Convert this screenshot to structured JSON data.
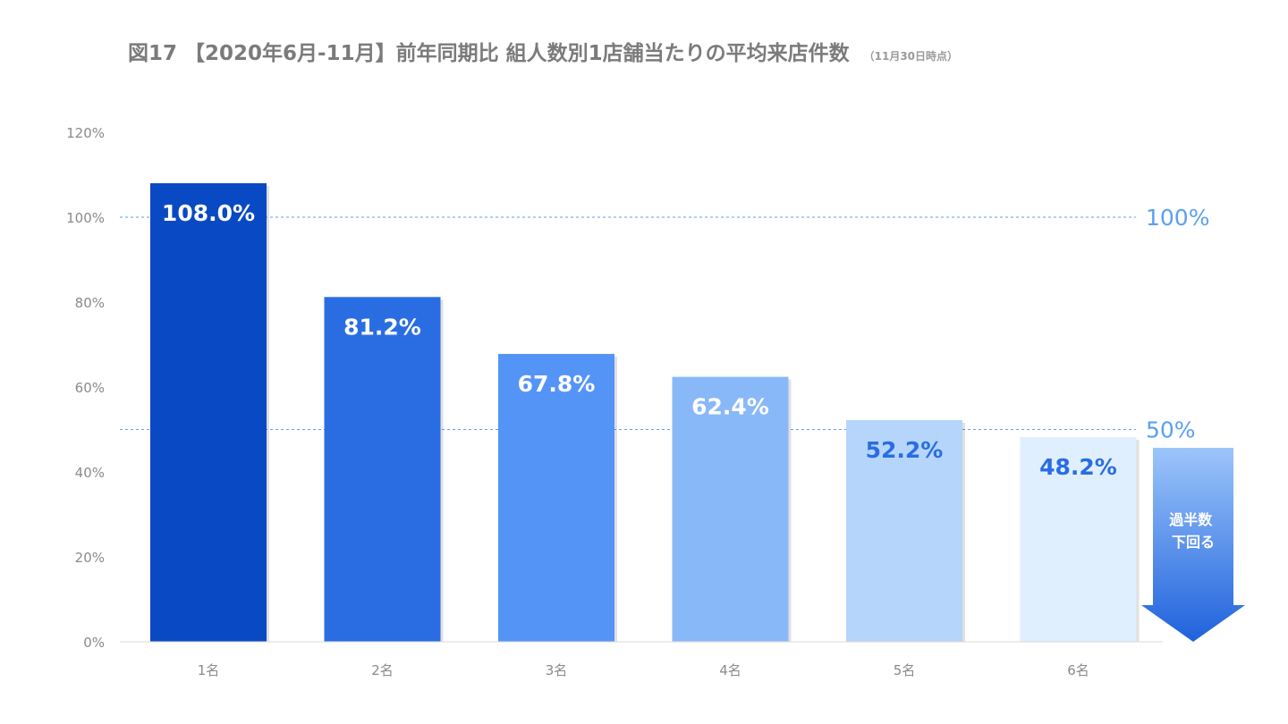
{
  "chart_data": {
    "type": "bar",
    "title": "図17 【2020年6月-11月】前年同期比 組人数別1店舗当たりの平均来店件数",
    "subtitle": "（11月30日時点）",
    "xlabel": "",
    "ylabel": "",
    "categories": [
      "1名",
      "2名",
      "3名",
      "4名",
      "5名",
      "6名"
    ],
    "values": [
      108.0,
      81.2,
      67.8,
      62.4,
      52.2,
      48.2
    ],
    "value_labels": [
      "108.0%",
      "81.2%",
      "67.8%",
      "62.4%",
      "52.2%",
      "48.2%"
    ],
    "bar_colors": [
      "#0a49c4",
      "#2a6de3",
      "#5594f7",
      "#89b8f8",
      "#b5d5fb",
      "#e0effd"
    ],
    "label_colors": [
      "#ffffff",
      "#ffffff",
      "#ffffff",
      "#ffffff",
      "#2a6de3",
      "#2a6de3"
    ],
    "ylim": [
      0,
      120
    ],
    "yticks": [
      0,
      20,
      40,
      60,
      80,
      100,
      120
    ],
    "ytick_labels": [
      "0%",
      "20%",
      "40%",
      "60%",
      "80%",
      "100%",
      "120%"
    ],
    "reference_lines": [
      {
        "value": 100,
        "label": "100%"
      },
      {
        "value": 50,
        "label": "50%"
      }
    ],
    "annotation": {
      "lines": [
        "過半数",
        "下回る"
      ]
    },
    "grid": false,
    "legend": "none",
    "accent_color": "#5aa0f0"
  }
}
